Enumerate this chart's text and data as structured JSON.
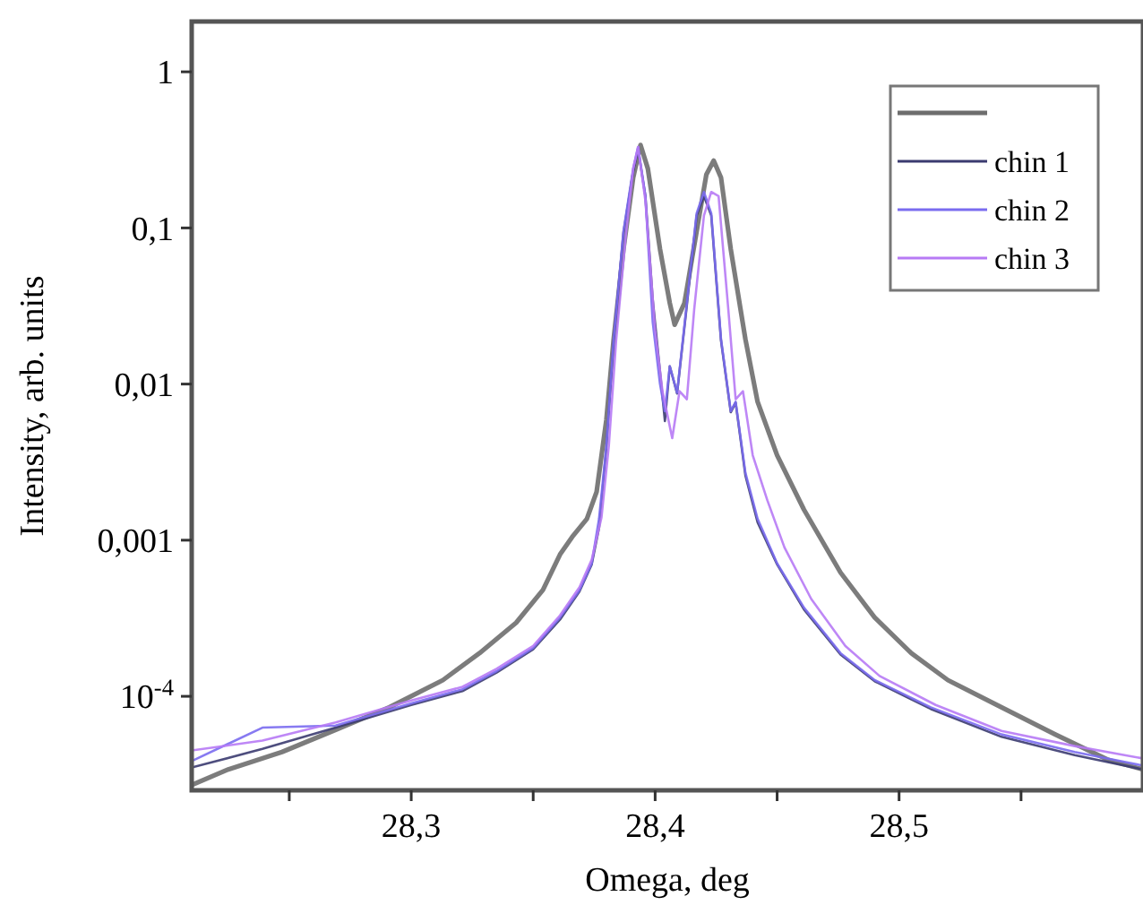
{
  "chart_data": {
    "type": "line",
    "xlabel": "Omega, deg",
    "ylabel": "Intensity, arb. units",
    "log": "y",
    "legend": "top right",
    "grid": false,
    "xlim": [
      28.21,
      28.6
    ],
    "ylim": [
      2.5e-05,
      2.1
    ],
    "xticks": [
      {
        "value": 28.25,
        "label": null
      },
      {
        "value": 28.3,
        "label": "28,3"
      },
      {
        "value": 28.35,
        "label": null
      },
      {
        "value": 28.4,
        "label": "28,4"
      },
      {
        "value": 28.45,
        "label": null
      },
      {
        "value": 28.5,
        "label": "28,5"
      },
      {
        "value": 28.55,
        "label": null
      }
    ],
    "yticks": [
      {
        "value": 0.0001,
        "label": "10$^{-4}$"
      },
      {
        "value": 0.001,
        "label": "0,001"
      },
      {
        "value": 0.01,
        "label": "0,01"
      },
      {
        "value": 0.1,
        "label": "0,1"
      },
      {
        "value": 1,
        "label": "1"
      }
    ],
    "series": [
      {
        "color": "#6e6e6e",
        "x": [
          28.21,
          28.225,
          28.247,
          28.269,
          28.291,
          28.313,
          28.328,
          28.343,
          28.354,
          28.361,
          28.366,
          28.372,
          28.376,
          28.38,
          28.383,
          28.387,
          28.391,
          28.394,
          28.397,
          28.402,
          28.406,
          28.408,
          28.412,
          28.417,
          28.421,
          28.424,
          28.427,
          28.431,
          28.437,
          28.442,
          28.45,
          28.461,
          28.476,
          28.49,
          28.505,
          28.52,
          28.542,
          28.564,
          28.586,
          28.6
        ],
        "values": [
          2.7e-05,
          3.4e-05,
          4.4e-05,
          6.1e-05,
          8.5e-05,
          0.000127,
          0.000189,
          0.000296,
          0.00048,
          0.00081,
          0.00105,
          0.00137,
          0.00204,
          0.0059,
          0.0194,
          0.073,
          0.21,
          0.34,
          0.24,
          0.073,
          0.033,
          0.024,
          0.033,
          0.095,
          0.22,
          0.27,
          0.21,
          0.073,
          0.0194,
          0.0077,
          0.0035,
          0.00157,
          0.00062,
          0.00032,
          0.000189,
          0.000127,
          8.5e-05,
          5.7e-05,
          3.9e-05,
          3.4e-05
        ]
      },
      {
        "name": "chin 1",
        "color": "#3b3b70",
        "x": [
          28.21,
          28.239,
          28.269,
          28.3,
          28.321,
          28.335,
          28.35,
          28.361,
          28.369,
          28.374,
          28.377,
          28.38,
          28.383,
          28.387,
          28.391,
          28.393,
          28.396,
          28.399,
          28.402,
          28.404,
          28.406,
          28.409,
          28.413,
          28.417,
          28.42,
          28.423,
          28.427,
          28.431,
          28.433,
          28.437,
          28.442,
          28.45,
          28.461,
          28.476,
          28.49,
          28.513,
          28.542,
          28.572,
          28.6
        ],
        "values": [
          3.5e-05,
          4.6e-05,
          6.3e-05,
          8.8e-05,
          0.000108,
          0.000142,
          0.0002,
          0.00031,
          0.00047,
          0.0007,
          0.0012,
          0.0039,
          0.019,
          0.093,
          0.23,
          0.32,
          0.16,
          0.035,
          0.012,
          0.0058,
          0.013,
          0.0087,
          0.032,
          0.12,
          0.16,
          0.12,
          0.019,
          0.0066,
          0.0076,
          0.0026,
          0.0013,
          0.0007,
          0.00036,
          0.000185,
          0.000125,
          8.3e-05,
          5.5e-05,
          4.2e-05,
          3.4e-05
        ]
      },
      {
        "name": "chin 2",
        "color": "#7a6cf0",
        "x": [
          28.21,
          28.239,
          28.269,
          28.3,
          28.321,
          28.335,
          28.35,
          28.361,
          28.369,
          28.374,
          28.377,
          28.38,
          28.383,
          28.387,
          28.391,
          28.393,
          28.396,
          28.399,
          28.402,
          28.404,
          28.406,
          28.409,
          28.413,
          28.417,
          28.42,
          28.423,
          28.427,
          28.431,
          28.433,
          28.437,
          28.442,
          28.45,
          28.461,
          28.476,
          28.49,
          28.513,
          28.542,
          28.572,
          28.6
        ],
        "values": [
          3.85e-05,
          6.3e-05,
          6.5e-05,
          9e-05,
          0.000111,
          0.000145,
          0.000204,
          0.00032,
          0.00048,
          0.00071,
          0.00137,
          0.004,
          0.0194,
          0.095,
          0.24,
          0.33,
          0.16,
          0.025,
          0.01,
          0.0067,
          0.013,
          0.0088,
          0.033,
          0.124,
          0.17,
          0.124,
          0.0194,
          0.0067,
          0.0077,
          0.0027,
          0.00137,
          0.00071,
          0.00037,
          0.000189,
          0.000127,
          8.5e-05,
          5.7e-05,
          4.4e-05,
          3.6e-05
        ]
      },
      {
        "name": "chin 3",
        "color": "#b77af5",
        "x": [
          28.21,
          28.239,
          28.269,
          28.3,
          28.321,
          28.335,
          28.35,
          28.361,
          28.369,
          28.374,
          28.378,
          28.381,
          28.384,
          28.388,
          28.391,
          28.393,
          28.396,
          28.4,
          28.403,
          28.407,
          28.41,
          28.413,
          28.416,
          28.42,
          28.423,
          28.426,
          28.43,
          28.433,
          28.436,
          28.44,
          28.446,
          28.453,
          28.464,
          28.478,
          28.492,
          28.515,
          28.542,
          28.572,
          28.6
        ],
        "values": [
          4.5e-05,
          5.2e-05,
          6.8e-05,
          9.4e-05,
          0.000115,
          0.00015,
          0.00021,
          0.00033,
          0.0005,
          0.00075,
          0.0014,
          0.004,
          0.019,
          0.09,
          0.24,
          0.33,
          0.15,
          0.022,
          0.009,
          0.0045,
          0.009,
          0.008,
          0.03,
          0.12,
          0.17,
          0.16,
          0.03,
          0.008,
          0.009,
          0.0035,
          0.0018,
          0.0009,
          0.00042,
          0.00021,
          0.000135,
          8.8e-05,
          6e-05,
          4.8e-05,
          4e-05
        ]
      }
    ]
  }
}
